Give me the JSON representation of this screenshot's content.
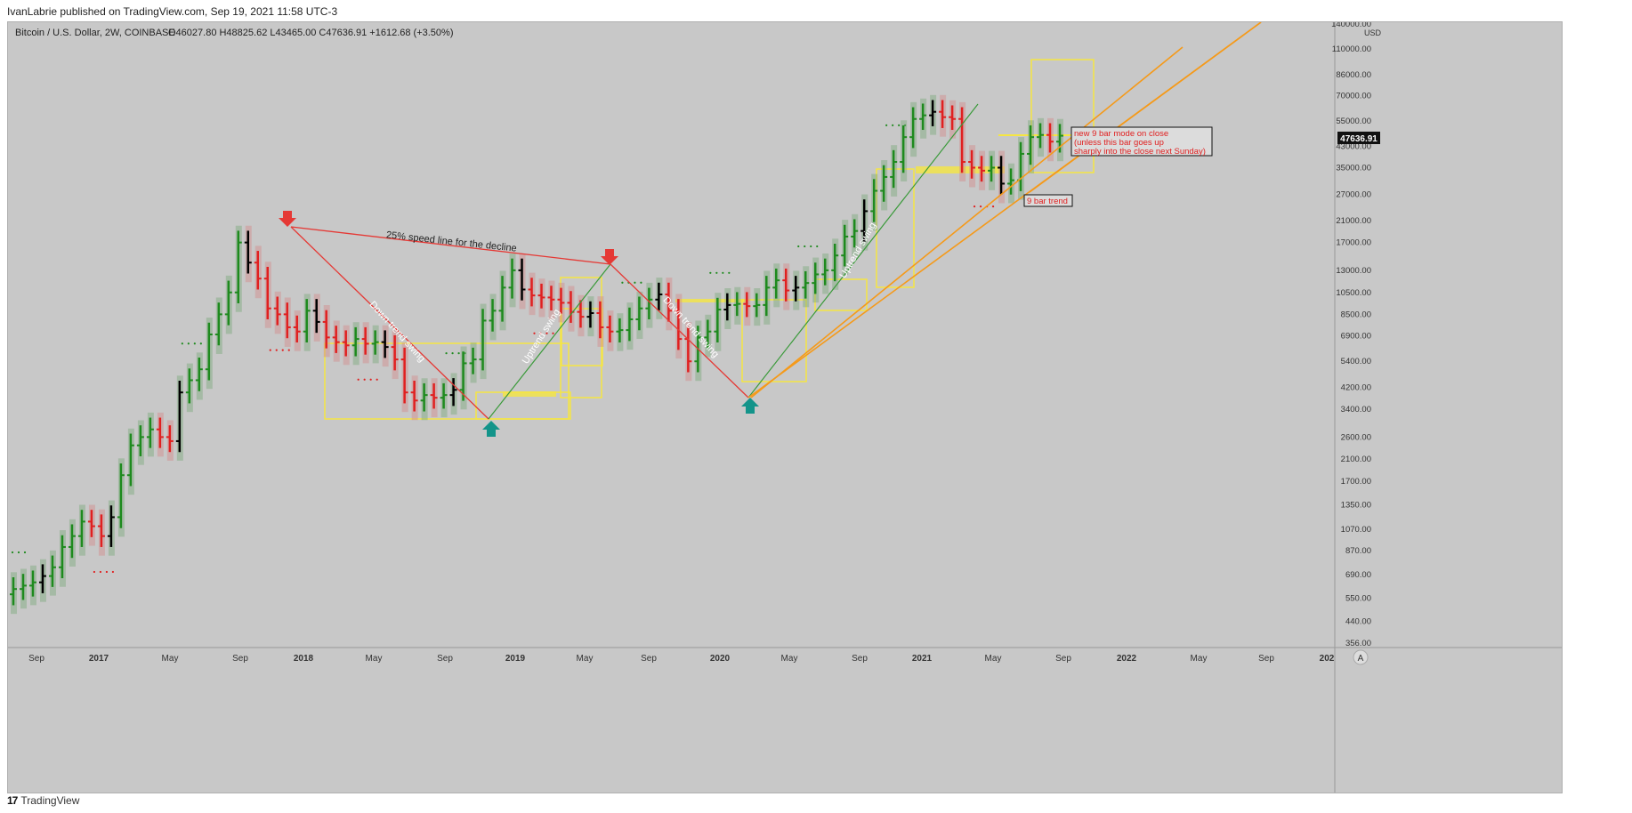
{
  "publish_line": "IvanLabrie published on TradingView.com, Sep 19, 2021 11:58 UTC-3",
  "footer": {
    "logo": "17",
    "label": "TradingView"
  },
  "header": {
    "symbol": "Bitcoin / U.S. Dollar, 2W, COINBASE",
    "ohlc": "O46027.80  H48825.62  L43465.00  C47636.91  +1612.68 (+3.50%)"
  },
  "price_axis": {
    "unit": "USD",
    "ticks": [
      "140000.00",
      "110000.00",
      "86000.00",
      "70000.00",
      "55000.00",
      "43000.00",
      "35000.00",
      "27000.00",
      "21000.00",
      "17000.00",
      "13000.00",
      "10500.00",
      "8500.00",
      "6900.00",
      "5400.00",
      "4200.00",
      "3400.00",
      "2600.00",
      "2100.00",
      "1700.00",
      "1350.00",
      "1070.00",
      "870.00",
      "690.00",
      "550.00",
      "440.00",
      "356.00"
    ],
    "last_price": "47636.91",
    "auto_label": "A"
  },
  "time_axis": {
    "labels": [
      "Sep",
      "2017",
      "May",
      "Sep",
      "2018",
      "May",
      "Sep",
      "2019",
      "May",
      "Sep",
      "2020",
      "May",
      "Sep",
      "2021",
      "May",
      "Sep",
      "2022",
      "May",
      "Sep",
      "202"
    ]
  },
  "colors": {
    "background": "#c8c8c8",
    "up": "#1e8a1e",
    "down": "#e02020",
    "neutral": "#000000",
    "yellow": "#f5e642",
    "orange": "#f59a1a",
    "teal": "#13948a",
    "speed_line": "#e53935"
  },
  "annotations": {
    "speed_line": "25% speed line for the decline",
    "down_swing_1": "Down trend swing",
    "up_swing_1": "Uptrend swing",
    "down_swing_2": "Down trend swing",
    "up_swing_2": "Uptrend swing",
    "callout_lines": [
      "new 9 bar mode on close",
      "(unless this bar goes up",
      "sharply into the close next Sunday)"
    ],
    "trend_label": "9 bar trend"
  },
  "chart_data": {
    "type": "ohlc-bars",
    "symbol": "BTCUSD",
    "interval": "2W",
    "scale": "log",
    "ylim": [
      356,
      140000
    ],
    "series": [
      {
        "name": "BTCUSD close (approx)",
        "values": [
          600,
          620,
          640,
          680,
          740,
          900,
          1000,
          1150,
          1100,
          1000,
          1200,
          1800,
          2400,
          2600,
          2800,
          2600,
          2500,
          4000,
          4500,
          5000,
          7000,
          8500,
          10500,
          17000,
          14000,
          12000,
          9000,
          8500,
          7500,
          7200,
          8800,
          7900,
          6800,
          6500,
          6300,
          6700,
          6400,
          6500,
          6200,
          5500,
          4000,
          3700,
          3900,
          3800,
          3900,
          4100,
          5300,
          5500,
          8000,
          8800,
          11000,
          13000,
          10800,
          10200,
          10000,
          9800,
          9500,
          8700,
          8300,
          8600,
          7500,
          7200,
          7300,
          8100,
          9000,
          9800,
          10300,
          8800,
          6700,
          5400,
          6800,
          7200,
          8900,
          9300,
          9400,
          9200,
          9300,
          11000,
          11800,
          10700,
          11000,
          11500,
          12500,
          13000,
          15000,
          18000,
          19000,
          23000,
          28000,
          32000,
          37000,
          47000,
          56000,
          58000,
          60000,
          57000,
          56000,
          37000,
          35000,
          34000,
          35000,
          30000,
          31000,
          40000,
          47000,
          48000,
          45000,
          47636.91
        ]
      }
    ]
  }
}
